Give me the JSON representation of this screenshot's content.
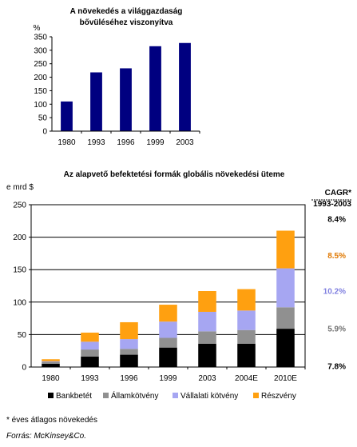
{
  "chart_data": [
    {
      "type": "bar",
      "title_line1": "A növekedés a világgazdaság",
      "title_line2": "bővüléséhez viszonyítva",
      "ylabel": "%",
      "ylim": [
        0,
        350
      ],
      "yticks": [
        0,
        50,
        100,
        150,
        200,
        250,
        300,
        350
      ],
      "categories": [
        "1980",
        "1993",
        "1996",
        "1999",
        "2003"
      ],
      "values": [
        110,
        218,
        233,
        315,
        327
      ],
      "bar_color": "#000080",
      "grid": false
    },
    {
      "type": "bar",
      "stacked": true,
      "title": "Az alapvető befektetési formák globális növekedési üteme",
      "ylabel": "e mrd $",
      "ylim": [
        0,
        250
      ],
      "yticks": [
        0,
        50,
        100,
        150,
        200,
        250
      ],
      "grid": true,
      "categories": [
        "1980",
        "1993",
        "1996",
        "1999",
        "2003",
        "2004E",
        "2010E"
      ],
      "series": [
        {
          "name": "Bankbetét",
          "color": "#000000",
          "values": [
            5,
            16,
            19,
            30,
            36,
            36,
            59
          ]
        },
        {
          "name": "Államkötvény",
          "color": "#909090",
          "values": [
            3,
            11,
            9,
            15,
            19,
            21,
            33
          ]
        },
        {
          "name": "Vállalati kötvény",
          "color": "#a6a6f2",
          "values": [
            1,
            12,
            15,
            25,
            30,
            30,
            60
          ]
        },
        {
          "name": "Részvény",
          "color": "#ffa010",
          "values": [
            3,
            14,
            26,
            26,
            32,
            33,
            58
          ]
        }
      ],
      "legend_position": "bottom",
      "cagr": {
        "title_line1": "CAGR*",
        "title_line2": "1993-2003",
        "items": [
          {
            "value": "8.4%",
            "color": "#000000",
            "y_value": 228
          },
          {
            "value": "8.5%",
            "color": "#e07800",
            "y_value": 172
          },
          {
            "value": "10.2%",
            "color": "#8080e0",
            "y_value": 117
          },
          {
            "value": "5.9%",
            "color": "#707070",
            "y_value": 59
          },
          {
            "value": "7.8%",
            "color": "#000000",
            "y_value": 1
          }
        ]
      }
    }
  ],
  "footnote": "* éves átlagos növekedés",
  "source": "Forrás: McKinsey&Co."
}
